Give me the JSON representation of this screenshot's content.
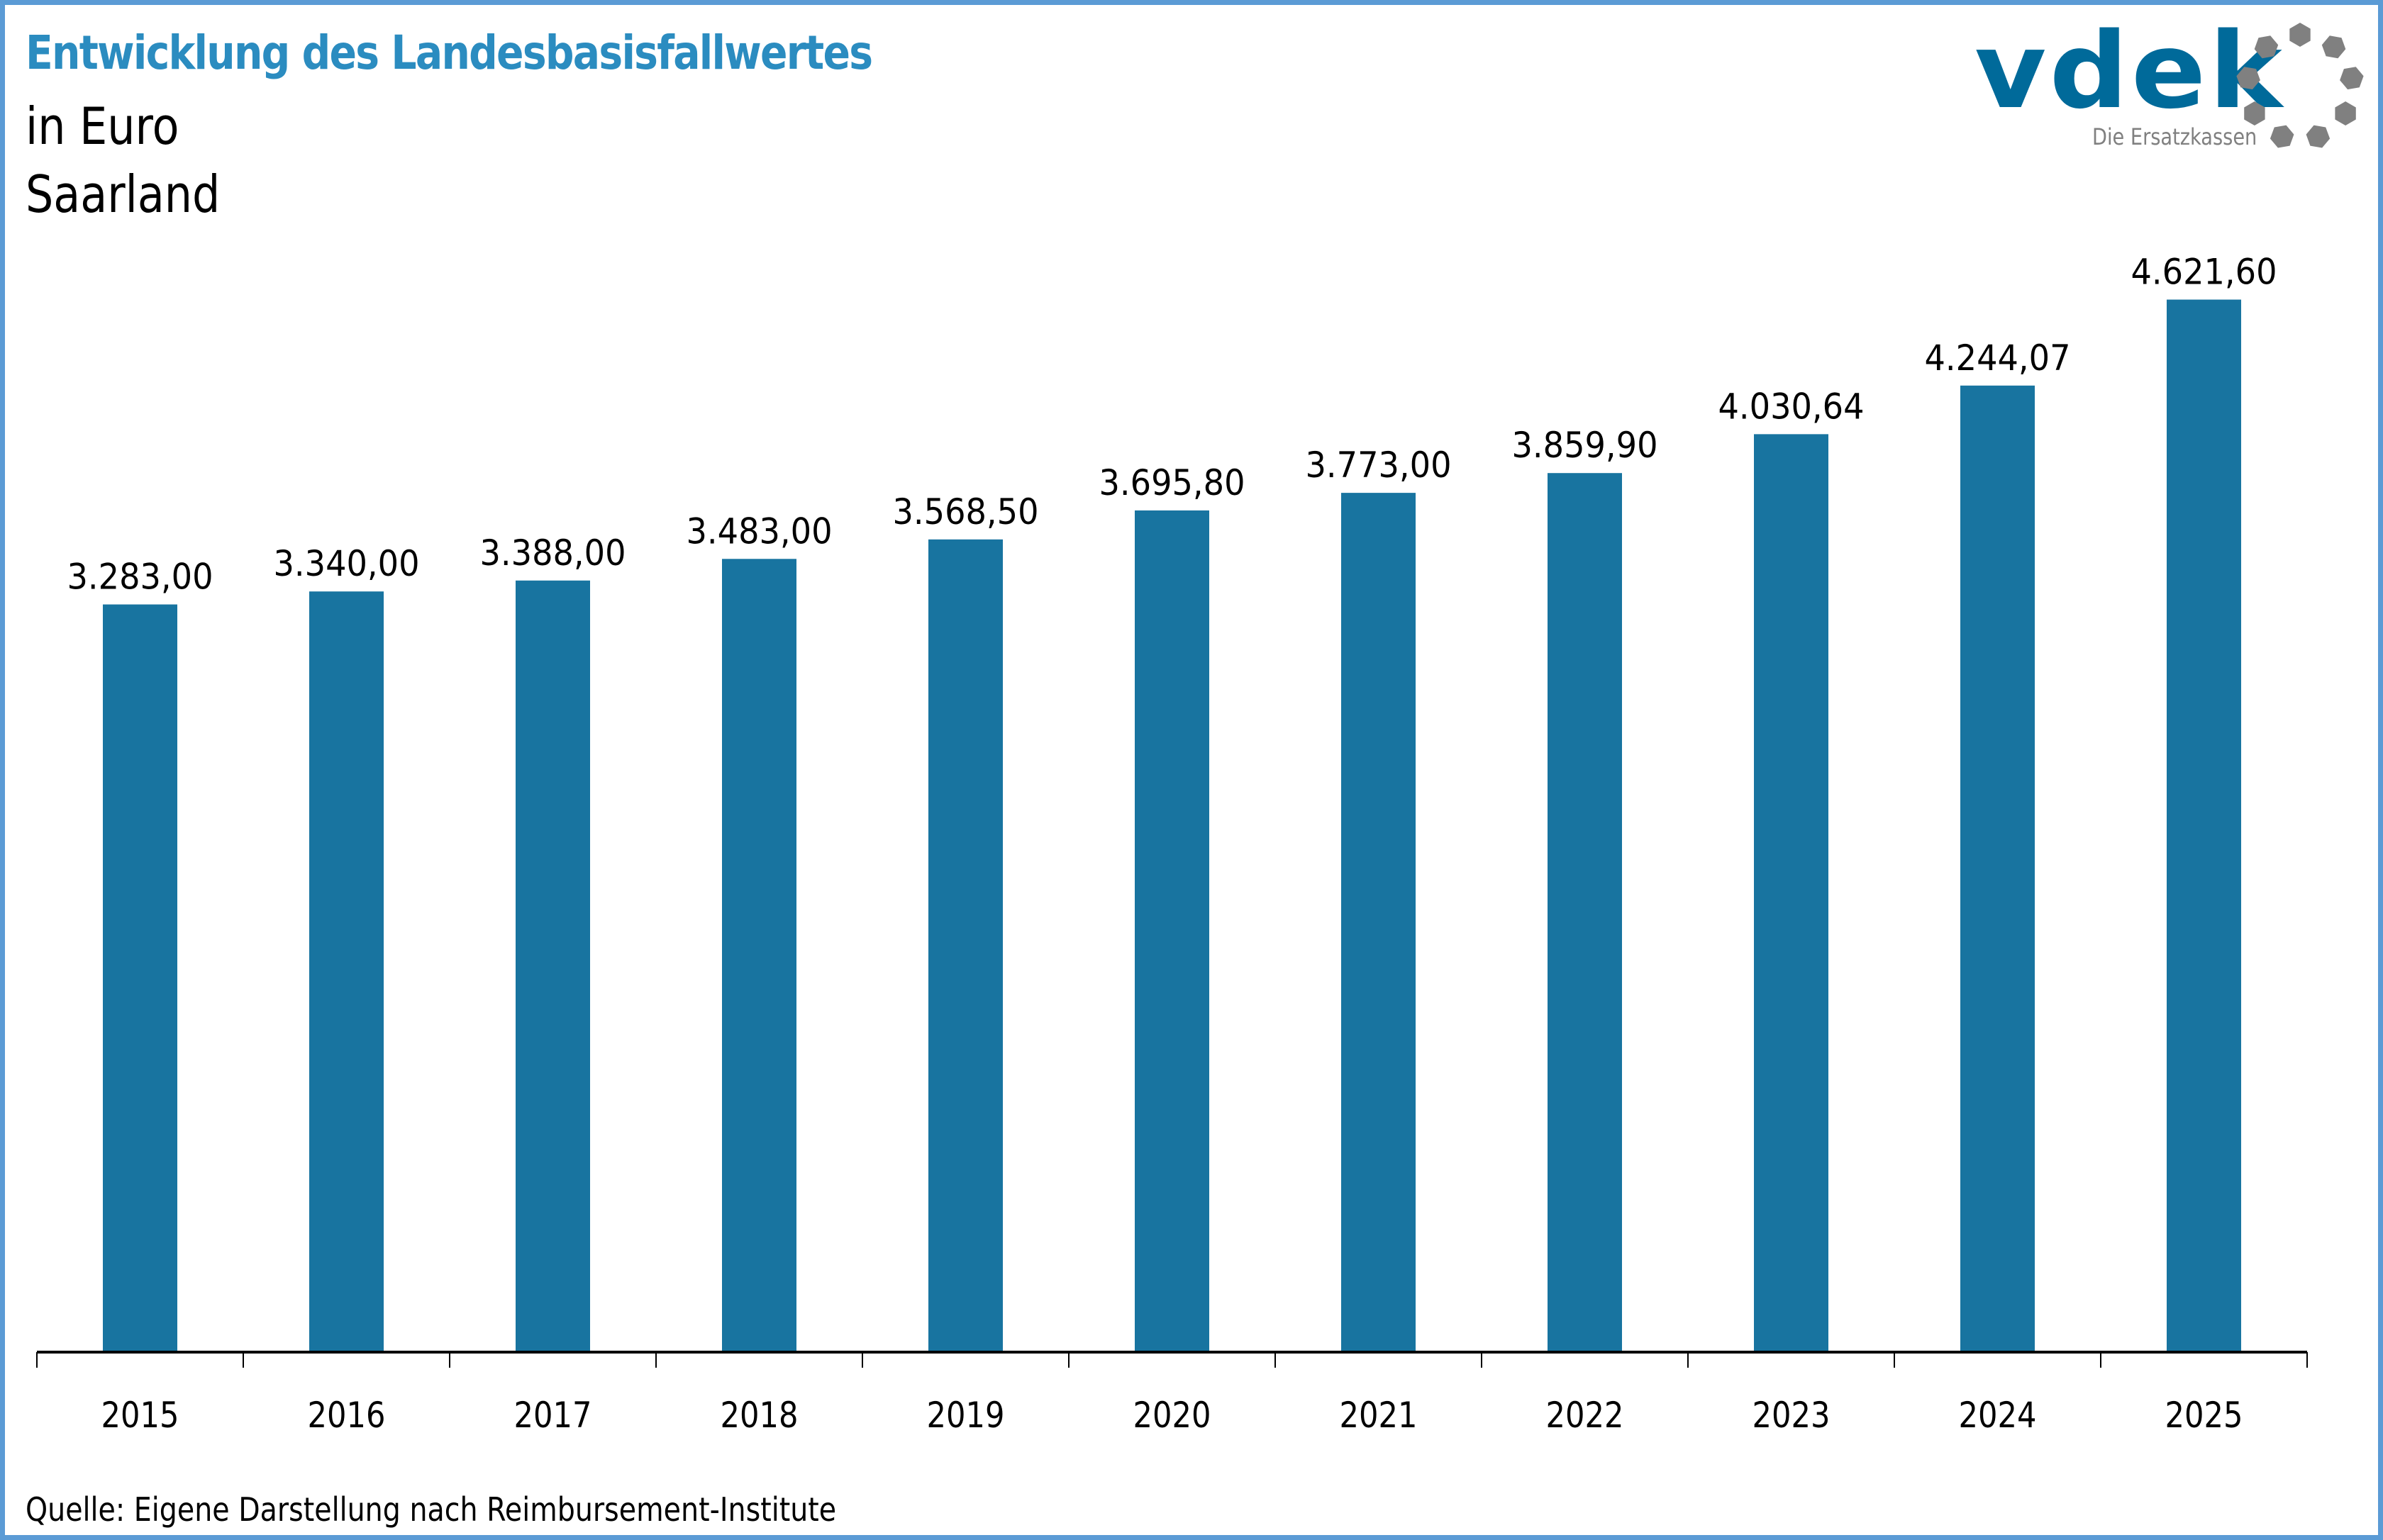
{
  "header": {
    "title": "Entwicklung des Landesbasisfallwertes",
    "subtitle_unit": "in Euro",
    "subtitle_region": "Saarland"
  },
  "logo": {
    "wordmark": "vdek",
    "tagline": "Die Ersatzkassen",
    "brand_color": "#006a9a",
    "ring_color": "#808080"
  },
  "footer": {
    "source": "Quelle: Eigene Darstellung nach Reimbursement-Institute"
  },
  "colors": {
    "bar": "#1874a0",
    "title": "#2b8cc0",
    "frame": "#5b9bd5"
  },
  "chart_data": {
    "type": "bar",
    "title": "Entwicklung des Landesbasisfallwertes",
    "subtitle": "in Euro, Saarland",
    "xlabel": "",
    "ylabel": "",
    "categories": [
      "2015",
      "2016",
      "2017",
      "2018",
      "2019",
      "2020",
      "2021",
      "2022",
      "2023",
      "2024",
      "2025"
    ],
    "values": [
      3283.0,
      3340.0,
      3388.0,
      3483.0,
      3568.5,
      3695.8,
      3773.0,
      3859.9,
      4030.64,
      4244.07,
      4621.6
    ],
    "data_labels": [
      "3.283,00",
      "3.340,00",
      "3.388,00",
      "3.483,00",
      "3.568,50",
      "3.695,80",
      "3.773,00",
      "3.859,90",
      "4.030,64",
      "4.244,07",
      "4.621,60"
    ],
    "ylim": [
      0,
      5000
    ],
    "grid": false,
    "legend": "none",
    "y_axis_visible": false
  }
}
